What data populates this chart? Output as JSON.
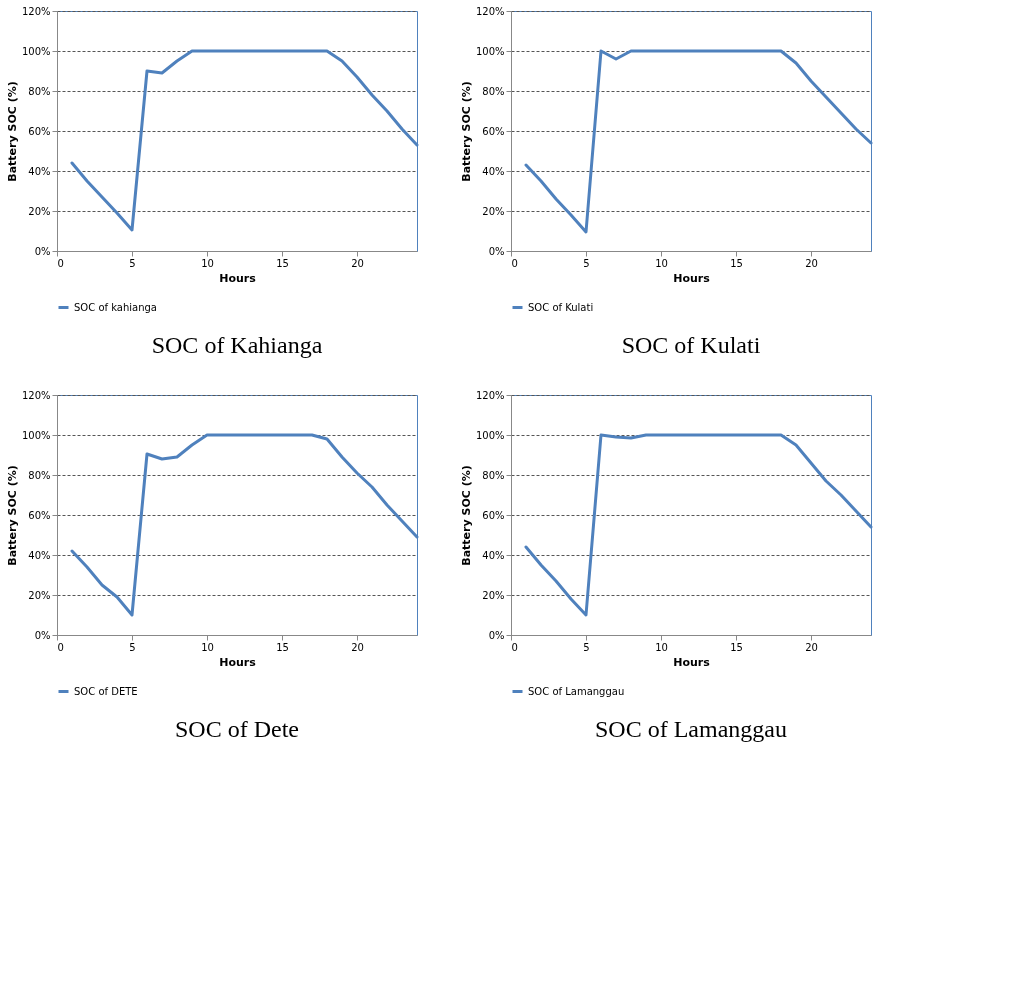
{
  "chart_data": [
    {
      "type": "line",
      "title": "SOC of Kahianga",
      "xlabel": "Hours",
      "ylabel": "Battery SOC (%)",
      "x": [
        1,
        2,
        3,
        4,
        5,
        6,
        7,
        8,
        9,
        10,
        11,
        12,
        13,
        14,
        15,
        16,
        17,
        18,
        19,
        20,
        21,
        22,
        23,
        24
      ],
      "series": [
        {
          "name": "SOC of kahianga",
          "color": "#4f81bd",
          "values": [
            44,
            35,
            27,
            19,
            10.5,
            90,
            89,
            95,
            100,
            100,
            100,
            100,
            100,
            100,
            100,
            100,
            100,
            100,
            95,
            87,
            78,
            70,
            61,
            53
          ]
        }
      ],
      "xlim": [
        0,
        24
      ],
      "xticks": [
        0,
        5,
        10,
        15,
        20
      ],
      "ylim": [
        0,
        120
      ],
      "yticks": [
        {
          "value": 0,
          "label": "0%"
        },
        {
          "value": 20,
          "label": "20%"
        },
        {
          "value": 40,
          "label": "40%"
        },
        {
          "value": 60,
          "label": "60%"
        },
        {
          "value": 80,
          "label": "80%"
        },
        {
          "value": 100,
          "label": "100%"
        },
        {
          "value": 120,
          "label": "120%"
        }
      ],
      "grid": "y",
      "legend": "bottom"
    },
    {
      "type": "line",
      "title": "SOC of Kulati",
      "xlabel": "Hours",
      "ylabel": "Battery SOC (%)",
      "x": [
        1,
        2,
        3,
        4,
        5,
        6,
        7,
        8,
        9,
        10,
        11,
        12,
        13,
        14,
        15,
        16,
        17,
        18,
        19,
        20,
        21,
        22,
        23,
        24
      ],
      "series": [
        {
          "name": "SOC of Kulati",
          "color": "#4f81bd",
          "values": [
            43,
            35,
            26,
            18,
            9.5,
            100,
            96,
            100,
            100,
            100,
            100,
            100,
            100,
            100,
            100,
            100,
            100,
            100,
            94,
            85,
            77,
            69,
            61,
            54
          ]
        }
      ],
      "xlim": [
        0,
        24
      ],
      "xticks": [
        0,
        5,
        10,
        15,
        20
      ],
      "ylim": [
        0,
        120
      ],
      "yticks": [
        {
          "value": 0,
          "label": "0%"
        },
        {
          "value": 20,
          "label": "20%"
        },
        {
          "value": 40,
          "label": "40%"
        },
        {
          "value": 60,
          "label": "60%"
        },
        {
          "value": 80,
          "label": "80%"
        },
        {
          "value": 100,
          "label": "100%"
        },
        {
          "value": 120,
          "label": "120%"
        }
      ],
      "grid": "y",
      "legend": "bottom"
    },
    {
      "type": "line",
      "title": "SOC of Dete",
      "xlabel": "Hours",
      "ylabel": "Battery SOC (%)",
      "x": [
        1,
        2,
        3,
        4,
        5,
        6,
        7,
        8,
        9,
        10,
        11,
        12,
        13,
        14,
        15,
        16,
        17,
        18,
        19,
        20,
        21,
        22,
        23,
        24
      ],
      "series": [
        {
          "name": "SOC of DETE",
          "color": "#4f81bd",
          "values": [
            42,
            34,
            25,
            19,
            10,
            90.5,
            88,
            89,
            95,
            100,
            100,
            100,
            100,
            100,
            100,
            100,
            100,
            98,
            89,
            81,
            74,
            65,
            57,
            49
          ]
        }
      ],
      "xlim": [
        0,
        24
      ],
      "xticks": [
        0,
        5,
        10,
        15,
        20
      ],
      "ylim": [
        0,
        120
      ],
      "yticks": [
        {
          "value": 0,
          "label": "0%"
        },
        {
          "value": 20,
          "label": "20%"
        },
        {
          "value": 40,
          "label": "40%"
        },
        {
          "value": 60,
          "label": "60%"
        },
        {
          "value": 80,
          "label": "80%"
        },
        {
          "value": 100,
          "label": "100%"
        },
        {
          "value": 120,
          "label": "120%"
        }
      ],
      "grid": "y",
      "legend": "bottom"
    },
    {
      "type": "line",
      "title": "SOC of Lamanggau",
      "xlabel": "Hours",
      "ylabel": "Battery SOC (%)",
      "x": [
        1,
        2,
        3,
        4,
        5,
        6,
        7,
        8,
        9,
        10,
        11,
        12,
        13,
        14,
        15,
        16,
        17,
        18,
        19,
        20,
        21,
        22,
        23,
        24
      ],
      "series": [
        {
          "name": "SOC of Lamanggau",
          "color": "#4f81bd",
          "values": [
            44,
            35,
            27,
            18,
            10,
            100,
            99,
            98.5,
            100,
            100,
            100,
            100,
            100,
            100,
            100,
            100,
            100,
            100,
            95,
            86,
            77,
            70,
            62,
            54
          ]
        }
      ],
      "xlim": [
        0,
        24
      ],
      "xticks": [
        0,
        5,
        10,
        15,
        20
      ],
      "ylim": [
        0,
        120
      ],
      "yticks": [
        {
          "value": 0,
          "label": "0%"
        },
        {
          "value": 20,
          "label": "20%"
        },
        {
          "value": 40,
          "label": "40%"
        },
        {
          "value": 60,
          "label": "60%"
        },
        {
          "value": 80,
          "label": "80%"
        },
        {
          "value": 100,
          "label": "100%"
        },
        {
          "value": 120,
          "label": "120%"
        }
      ],
      "grid": "y",
      "legend": "bottom"
    }
  ]
}
